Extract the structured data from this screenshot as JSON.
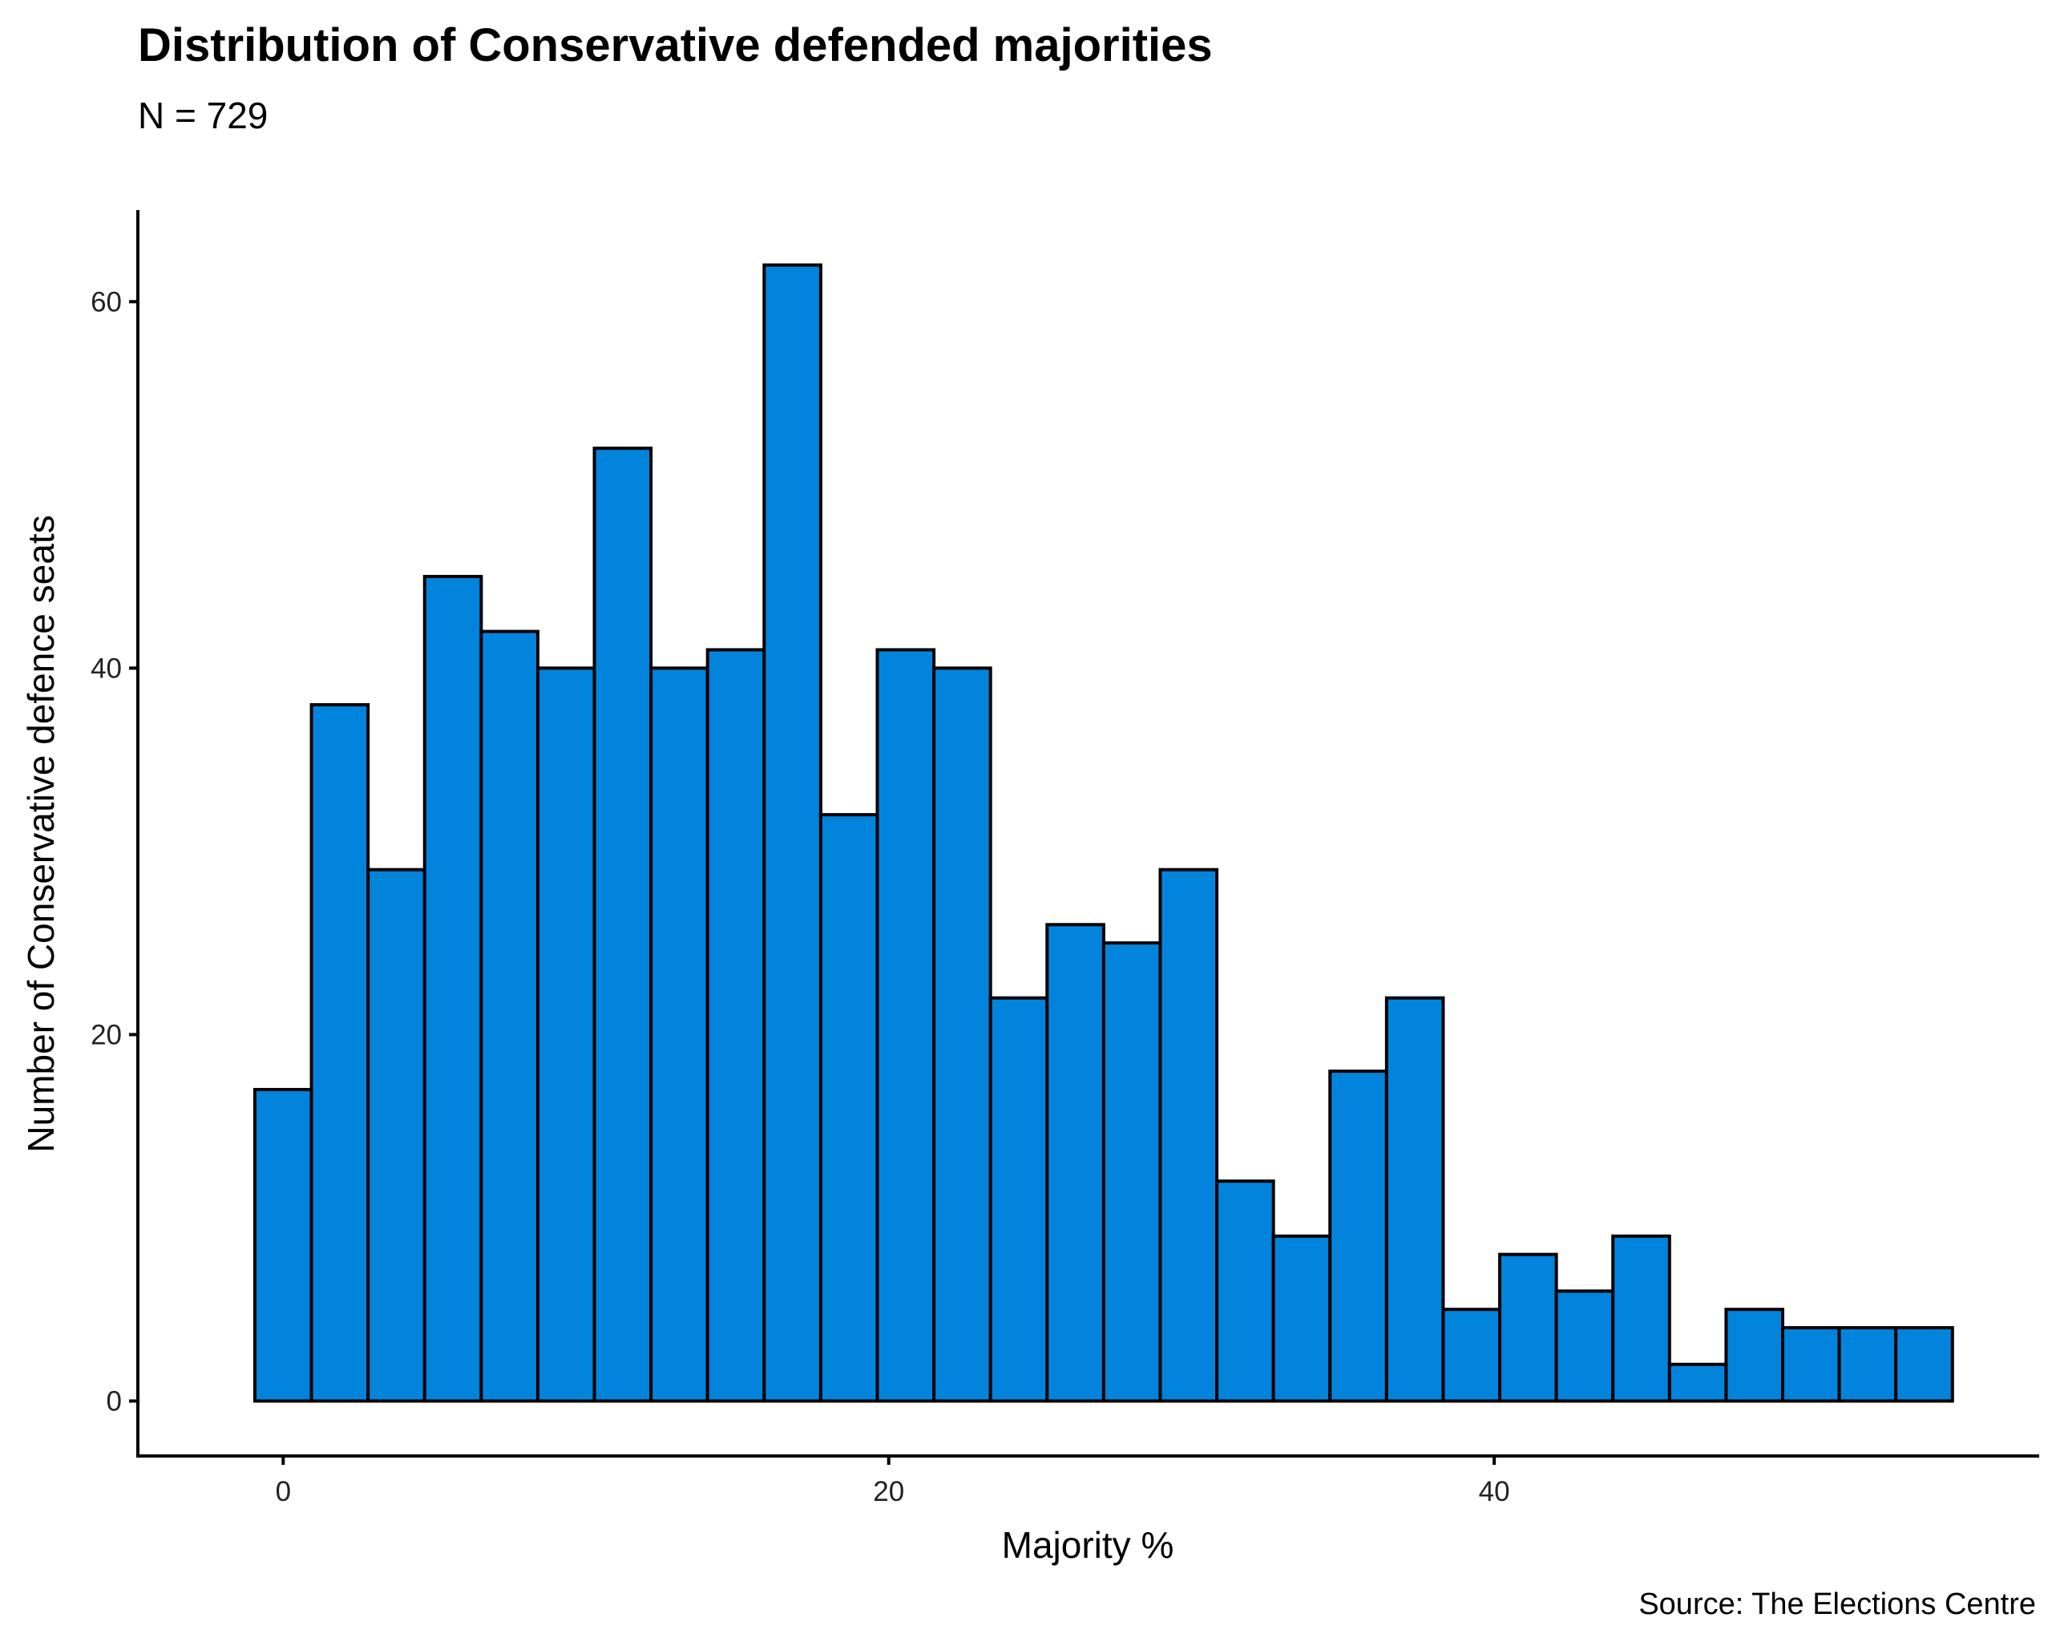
{
  "chart_data": {
    "type": "bar",
    "title": "Distribution of Conservative defended majorities",
    "subtitle": "N = 729",
    "xlabel": "Majority %",
    "ylabel": "Number of Conservative defence seats",
    "caption": "Source: The Elections Centre",
    "bar_color": "#0284dc",
    "outline_color": "#000000",
    "bin_width": 1.869,
    "bin_start": -0.935,
    "values": [
      17,
      38,
      29,
      45,
      42,
      40,
      52,
      40,
      41,
      62,
      32,
      41,
      40,
      22,
      26,
      25,
      29,
      12,
      9,
      18,
      22,
      5,
      8,
      6,
      9,
      2,
      5,
      4,
      4,
      4
    ],
    "xlim": [
      -4.8,
      58.0
    ],
    "ylim": [
      -3,
      65
    ],
    "x_ticks": [
      0,
      20,
      40
    ],
    "x_tick_labels": [
      "0",
      "20",
      "40"
    ],
    "y_ticks": [
      0,
      20,
      40,
      60
    ],
    "y_tick_labels": [
      "0",
      "20",
      "40",
      "60"
    ],
    "grid": false,
    "legend": "none"
  }
}
